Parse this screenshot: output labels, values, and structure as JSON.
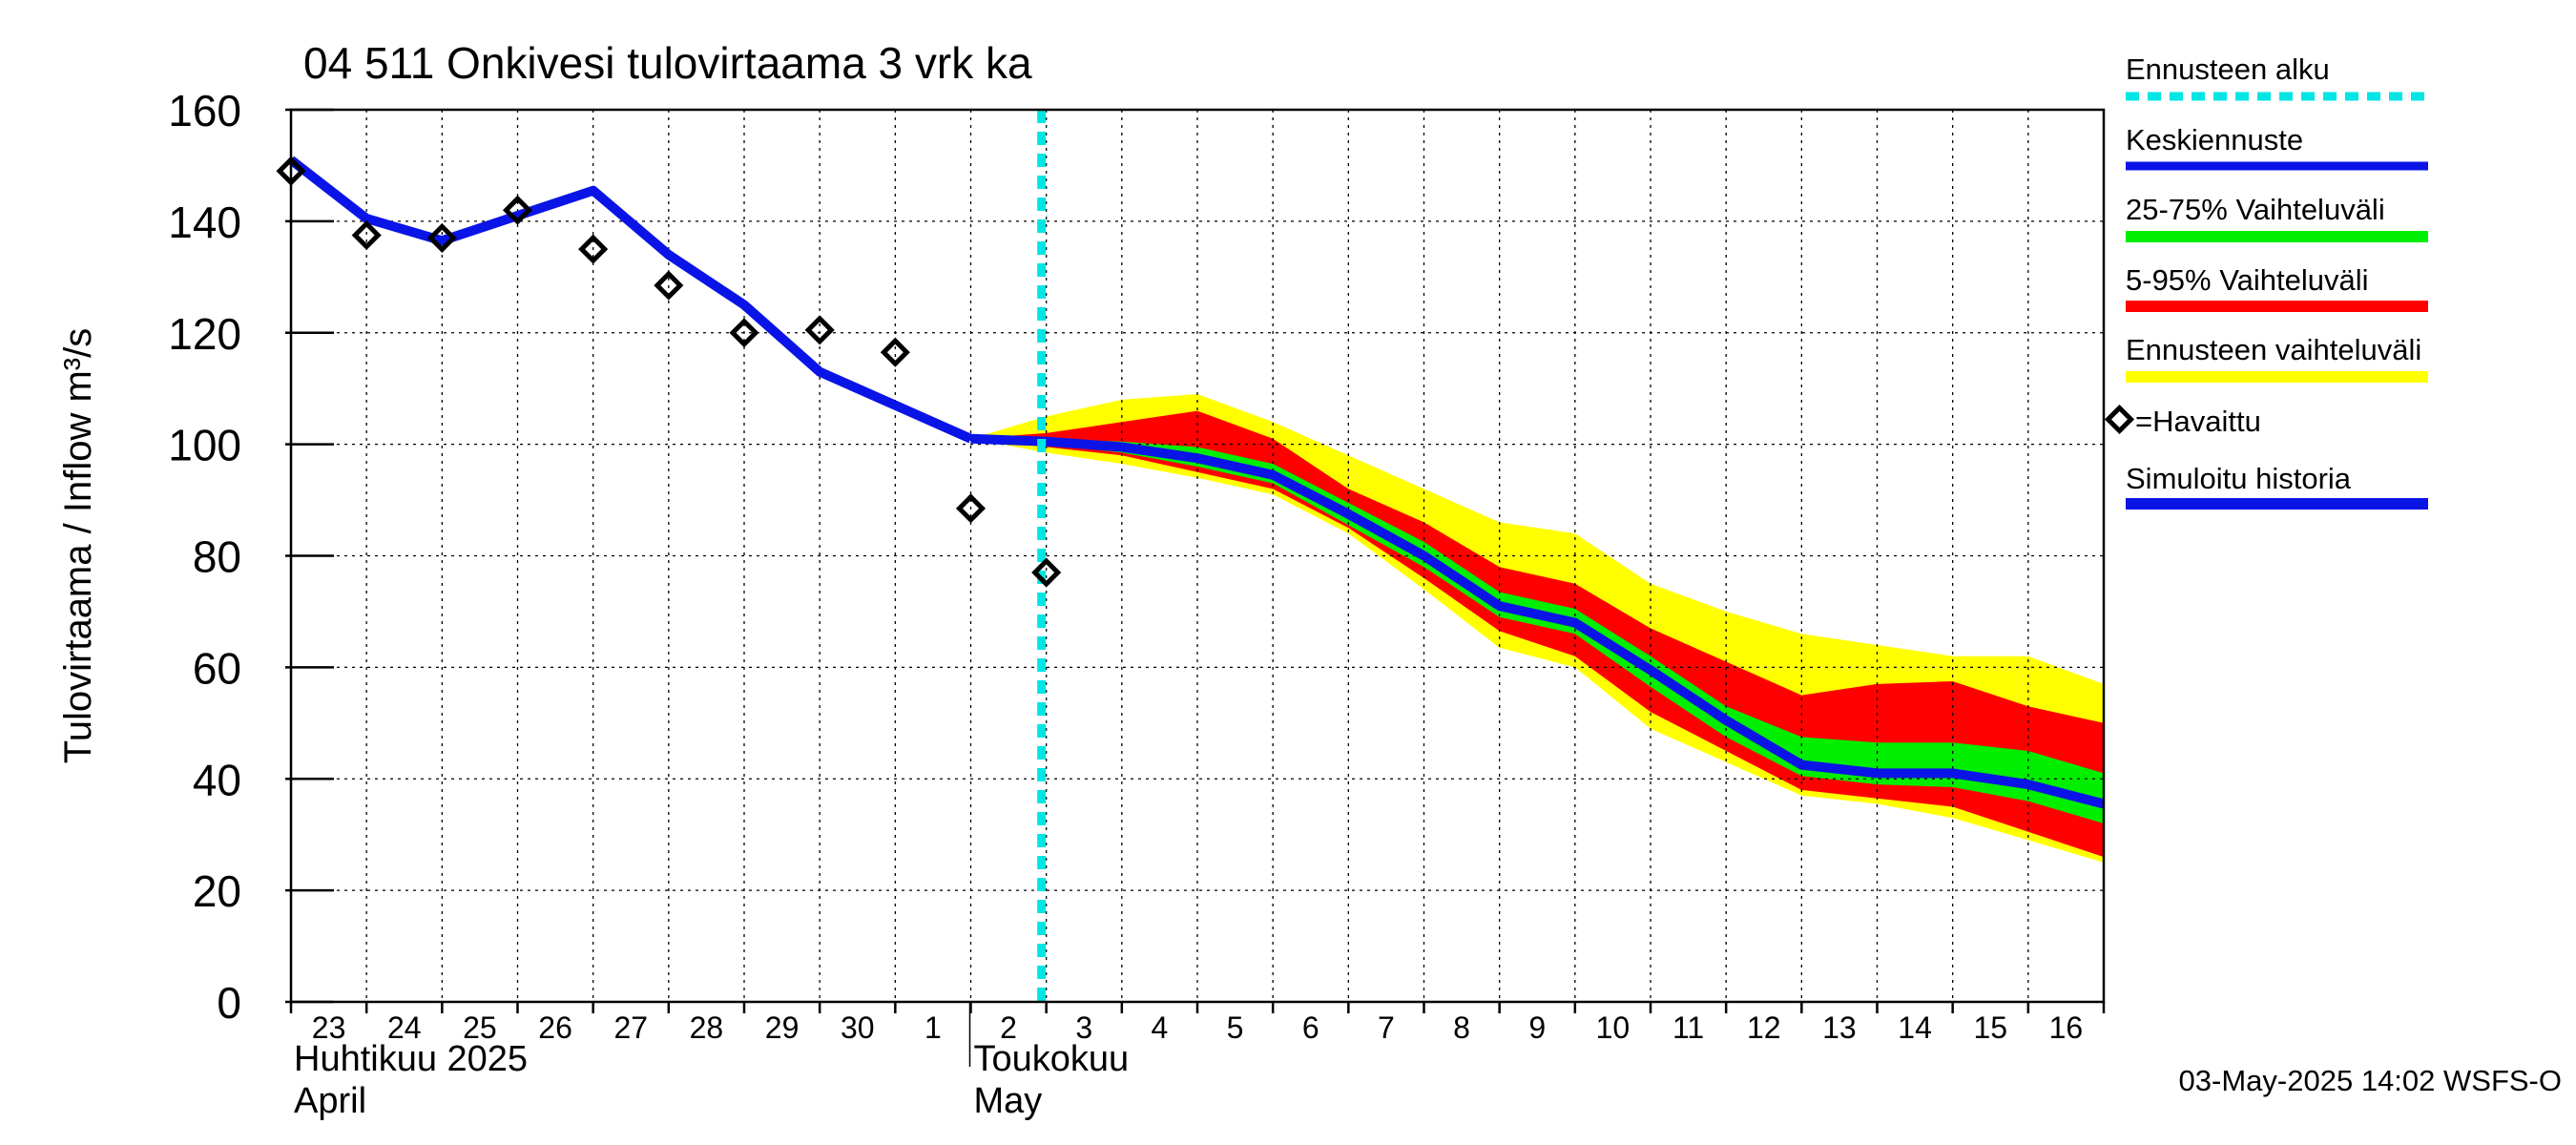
{
  "colors": {
    "forecast_start": "#00e5e5",
    "mean_forecast": "#0a14e6",
    "band_25_75": "#00ee00",
    "band_5_95": "#ff0000",
    "band_full": "#ffff00",
    "observed": "#000000",
    "simulated": "#0a14e6",
    "grid": "#000000"
  },
  "chart_data": {
    "type": "line",
    "title": "04 511 Onkivesi tulovirtaama 3 vrk ka",
    "ylabel": "Tulovirtaama / Inflow   m³/s",
    "ylim": [
      0,
      160
    ],
    "yticks": [
      "0",
      "20",
      "40",
      "60",
      "80",
      "100",
      "120",
      "140",
      "160"
    ],
    "grid": true,
    "legend_position": "right",
    "x_start_date": "2025-04-23",
    "x_end_date": "2025-05-17",
    "xtick_labels": [
      "23",
      "24",
      "25",
      "26",
      "27",
      "28",
      "29",
      "30",
      "1",
      "2",
      "3",
      "4",
      "5",
      "6",
      "7",
      "8",
      "9",
      "10",
      "11",
      "12",
      "13",
      "14",
      "15",
      "16"
    ],
    "month_labels": [
      {
        "fi": "Huhtikuu  2025",
        "en": "April",
        "start_date": "2025-04-23"
      },
      {
        "fi": "Toukokuu",
        "en": "May",
        "start_date": "2025-05-02"
      }
    ],
    "forecast_start_date": "2025-05-03",
    "observed": [
      {
        "date": "2025-04-23",
        "value": 149
      },
      {
        "date": "2025-04-24",
        "value": 137.5
      },
      {
        "date": "2025-04-25",
        "value": 137
      },
      {
        "date": "2025-04-26",
        "value": 142
      },
      {
        "date": "2025-04-27",
        "value": 135
      },
      {
        "date": "2025-04-28",
        "value": 128.5
      },
      {
        "date": "2025-04-29",
        "value": 120
      },
      {
        "date": "2025-04-30",
        "value": 120.5
      },
      {
        "date": "2025-05-01",
        "value": 116.5
      },
      {
        "date": "2025-05-02",
        "value": 88.5
      },
      {
        "date": "2025-05-03",
        "value": 77
      }
    ],
    "simulated_history": [
      {
        "date": "2025-04-23",
        "value": 151
      },
      {
        "date": "2025-04-24",
        "value": 140.5
      },
      {
        "date": "2025-04-25",
        "value": 136.5
      },
      {
        "date": "2025-04-26",
        "value": 141
      },
      {
        "date": "2025-04-27",
        "value": 145.5
      },
      {
        "date": "2025-04-28",
        "value": 134
      },
      {
        "date": "2025-04-29",
        "value": 125
      },
      {
        "date": "2025-04-30",
        "value": 113
      },
      {
        "date": "2025-05-01",
        "value": 107
      },
      {
        "date": "2025-05-02",
        "value": 101
      }
    ],
    "forecast_dates": [
      "2025-05-02",
      "2025-05-03",
      "2025-05-04",
      "2025-05-05",
      "2025-05-06",
      "2025-05-07",
      "2025-05-08",
      "2025-05-09",
      "2025-05-10",
      "2025-05-11",
      "2025-05-12",
      "2025-05-13",
      "2025-05-14",
      "2025-05-15",
      "2025-05-16",
      "2025-05-17"
    ],
    "mean_forecast": [
      101,
      100.5,
      99.5,
      97.5,
      94.5,
      87.5,
      80,
      71,
      68,
      59.5,
      50.5,
      42.5,
      41,
      41,
      39,
      35.5
    ],
    "band_25_75_upper": [
      101,
      101,
      100.5,
      99.5,
      96.5,
      89.5,
      82.5,
      73.5,
      70.5,
      62,
      53,
      47.5,
      46.5,
      46.5,
      45,
      41
    ],
    "band_25_75_lower": [
      101,
      100,
      98.5,
      96,
      93,
      85.5,
      78,
      69,
      66,
      56.5,
      47.5,
      40.5,
      39,
      38.5,
      36,
      32
    ],
    "band_5_95_upper": [
      101,
      102,
      104,
      106,
      101,
      92,
      86,
      78,
      75,
      67,
      61,
      55,
      57,
      57.5,
      53,
      50
    ],
    "band_5_95_lower": [
      101,
      99.5,
      98,
      95,
      92,
      85,
      76,
      66.5,
      62,
      52,
      45,
      38,
      36.5,
      35,
      30.5,
      26
    ],
    "band_full_upper": [
      101,
      105,
      108,
      109,
      104,
      98,
      92,
      86,
      84,
      75,
      70,
      66,
      64,
      62,
      62,
      57
    ],
    "band_full_lower": [
      101,
      98.5,
      96.5,
      94,
      91,
      84,
      74,
      63.5,
      60,
      49,
      43,
      37,
      35.5,
      33,
      29,
      25
    ]
  },
  "legend": {
    "forecast_start": "Ennusteen alku",
    "mean_forecast": "Keskiennuste",
    "band_25_75": "25-75% Vaihteluväli",
    "band_5_95": "5-95% Vaihteluväli",
    "band_full": "Ennusteen vaihteluväli",
    "observed": "=Havaittu",
    "simulated": "Simuloitu historia"
  },
  "footer": {
    "timestamp": "03-May-2025 14:02 WSFS-O"
  }
}
